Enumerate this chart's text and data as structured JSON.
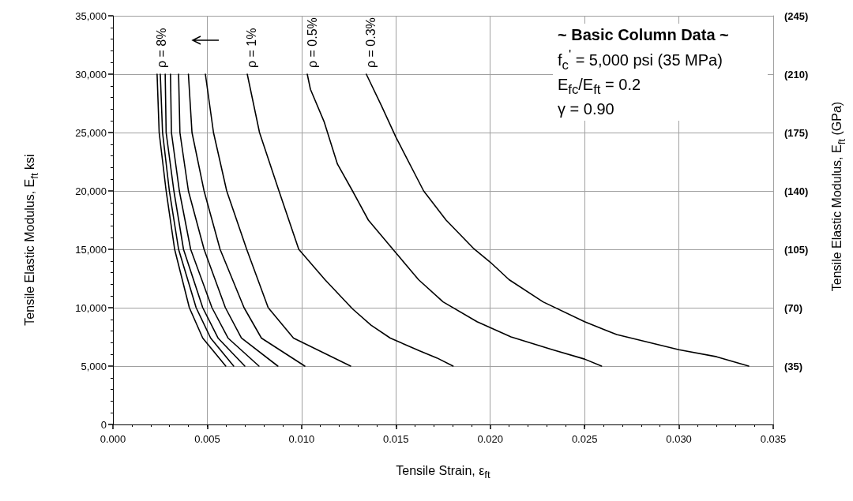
{
  "chart_data": {
    "type": "line",
    "xlabel": "Tensile Strain, ε$_{ft}$",
    "ylabel": "Tensile Elastic Modulus, E$_{ft}$  ksi",
    "y2label": "Tensile Elastic Modulus, E$_{ft}$ (GPa)",
    "xlim": [
      0,
      0.035
    ],
    "xticks": [
      {
        "value": 0,
        "label": "0.000"
      },
      {
        "value": 0.005,
        "label": "0.005"
      },
      {
        "value": 0.01,
        "label": "0.010"
      },
      {
        "value": 0.015,
        "label": "0.015"
      },
      {
        "value": 0.02,
        "label": "0.020"
      },
      {
        "value": 0.025,
        "label": "0.025"
      },
      {
        "value": 0.03,
        "label": "0.030"
      },
      {
        "value": 0.035,
        "label": "0.035"
      }
    ],
    "ylim": [
      0,
      35000
    ],
    "yticks": [
      0,
      {
        "value": 5000,
        "label": "5,000"
      },
      {
        "value": 10000,
        "label": "10,000"
      },
      {
        "value": 15000,
        "label": "15,000"
      },
      {
        "value": 20000,
        "label": "20,000"
      },
      {
        "value": 25000,
        "label": "25,000"
      },
      {
        "value": 30000,
        "label": "30,000"
      },
      {
        "value": 35000,
        "label": "35,000"
      }
    ],
    "y2lim": [
      0,
      245
    ],
    "y2ticks": [
      {
        "value": 35,
        "label": "(35)"
      },
      {
        "value": 70,
        "label": "(70)"
      },
      {
        "value": 105,
        "label": "(105)"
      },
      {
        "value": 140,
        "label": "(140)"
      },
      {
        "value": 175,
        "label": "(175)"
      },
      {
        "value": 210,
        "label": "(210)"
      },
      {
        "value": 245,
        "label": "(245)"
      }
    ],
    "grid": true,
    "marker": "none",
    "line_style": "solid",
    "series": [
      {
        "color": "#000000",
        "x": [
          0.00234,
          0.00245,
          0.00282,
          0.00327,
          0.00405,
          0.00476,
          0.00598
        ],
        "values": [
          30000,
          25000,
          20000,
          15000,
          10000,
          7400,
          5000
        ]
      },
      {
        "color": "#000000",
        "x": [
          0.00251,
          0.00263,
          0.00299,
          0.00348,
          0.00441,
          0.00518,
          0.0064
        ],
        "values": [
          30000,
          25000,
          20000,
          15000,
          10000,
          7400,
          5000
        ]
      },
      {
        "color": "#000000",
        "x": [
          0.00277,
          0.00282,
          0.00323,
          0.00374,
          0.00476,
          0.00557,
          0.00699
        ],
        "values": [
          30000,
          25000,
          20000,
          15000,
          10000,
          7400,
          5000
        ]
      },
      {
        "color": "#000000",
        "x": [
          0.00305,
          0.0031,
          0.00352,
          0.00412,
          0.00525,
          0.0061,
          0.00774
        ],
        "values": [
          30000,
          25000,
          20000,
          15000,
          10000,
          7400,
          5000
        ]
      },
      {
        "color": "#000000",
        "x": [
          0.00348,
          0.00355,
          0.004,
          0.00483,
          0.00596,
          0.00681,
          0.00874
        ],
        "values": [
          30000,
          25000,
          20000,
          15000,
          10000,
          7400,
          5000
        ]
      },
      {
        "color": "#000000",
        "x": [
          0.004,
          0.00419,
          0.00483,
          0.00568,
          0.00695,
          0.00787,
          0.01017
        ],
        "values": [
          30000,
          25000,
          20000,
          15000,
          10000,
          7400,
          5000
        ]
      },
      {
        "color": "#000000",
        "x": [
          0.0049,
          0.00533,
          0.00603,
          0.00709,
          0.00823,
          0.00957,
          0.0126
        ],
        "values": [
          30000,
          25000,
          20000,
          15000,
          10000,
          7400,
          5000
        ]
      },
      {
        "color": "#000000",
        "x": [
          0.00712,
          0.00777,
          0.0088,
          0.00985,
          0.01124,
          0.0127,
          0.01368,
          0.0147,
          0.01626,
          0.01717,
          0.01803
        ],
        "values": [
          30000,
          25000,
          20000,
          15000,
          12400,
          9900,
          8500,
          7400,
          6300,
          5700,
          5000
        ]
      },
      {
        "color": "#000000",
        "x": [
          0.0103,
          0.01047,
          0.0112,
          0.0119,
          0.0127,
          0.01354,
          0.015,
          0.0162,
          0.0175,
          0.0193,
          0.0211,
          0.0233,
          0.025,
          0.0259
        ],
        "values": [
          30000,
          28700,
          25900,
          22300,
          20000,
          17500,
          14700,
          12400,
          10500,
          8800,
          7500,
          6400,
          5600,
          5000
        ]
      },
      {
        "color": "#000000",
        "x": [
          0.01343,
          0.01423,
          0.015,
          0.01647,
          0.01766,
          0.0191,
          0.02,
          0.021,
          0.0228,
          0.025,
          0.0267,
          0.03,
          0.032,
          0.0337
        ],
        "values": [
          30000,
          27300,
          24600,
          20000,
          17500,
          15100,
          13900,
          12400,
          10500,
          8800,
          7700,
          6400,
          5800,
          5000
        ]
      }
    ],
    "annotations": [
      {
        "text": "ρ = 8%",
        "x": 0.00234,
        "y": 30000
      },
      {
        "text": "ρ = 1%",
        "x": 0.0071,
        "y": 30000
      },
      {
        "text": "ρ = 0.5%",
        "x": 0.0103,
        "y": 30000
      },
      {
        "text": "ρ = 0.3%",
        "x": 0.01343,
        "y": 30000
      },
      "~ Basic Column Data ~",
      "f$_{c}$$^{'}$ = 5,000 psi (35 MPa)",
      "E$_{fc}$/E$_{ft}$ = 0.2",
      "γ = 0.90"
    ]
  }
}
